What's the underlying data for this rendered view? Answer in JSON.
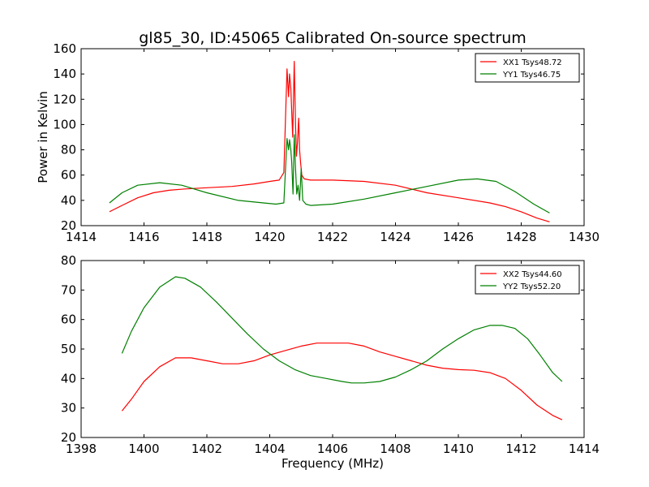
{
  "figure": {
    "title": "gl85_30, ID:45065 Calibrated On-source spectrum"
  },
  "chart_data": [
    {
      "type": "line",
      "title": "gl85_30, ID:45065 Calibrated On-source spectrum",
      "xlabel": "",
      "ylabel": "Power in Kelvin",
      "xlim": [
        1414,
        1430
      ],
      "ylim": [
        20,
        160
      ],
      "xticks": [
        1414,
        1416,
        1418,
        1420,
        1422,
        1424,
        1426,
        1428,
        1430
      ],
      "yticks": [
        20,
        40,
        60,
        80,
        100,
        120,
        140,
        160
      ],
      "grid": false,
      "legend_position": "top-right",
      "series": [
        {
          "name": "XX1 Tsys48.72",
          "color": "#ff0000",
          "x": [
            1414.9,
            1415.3,
            1415.8,
            1416.3,
            1416.8,
            1417.3,
            1418.0,
            1418.8,
            1419.5,
            1420.0,
            1420.3,
            1420.45,
            1420.55,
            1420.6,
            1420.63,
            1420.67,
            1420.7,
            1420.73,
            1420.78,
            1420.82,
            1420.85,
            1420.88,
            1420.92,
            1420.95,
            1420.98,
            1421.02,
            1421.1,
            1421.3,
            1422.0,
            1423.0,
            1424.0,
            1425.0,
            1426.0,
            1427.0,
            1427.5,
            1428.0,
            1428.5,
            1428.9
          ],
          "y": [
            31,
            36,
            42,
            46,
            48,
            49,
            50,
            51,
            53,
            55,
            56,
            62,
            144,
            122,
            140,
            129,
            110,
            90,
            150,
            100,
            75,
            85,
            105,
            80,
            70,
            60,
            57,
            56,
            56,
            55,
            52,
            46,
            42,
            38,
            35,
            31,
            26,
            23
          ]
        },
        {
          "name": "YY1 Tsys46.75",
          "color": "#008000",
          "x": [
            1414.9,
            1415.3,
            1415.8,
            1416.5,
            1417.2,
            1418.0,
            1419.0,
            1419.8,
            1420.2,
            1420.45,
            1420.55,
            1420.6,
            1420.63,
            1420.67,
            1420.7,
            1420.74,
            1420.78,
            1420.82,
            1420.86,
            1420.9,
            1420.95,
            1421.0,
            1421.05,
            1421.15,
            1421.3,
            1422.0,
            1423.0,
            1424.0,
            1425.0,
            1426.0,
            1426.6,
            1427.2,
            1427.8,
            1428.4,
            1428.9
          ],
          "y": [
            38,
            46,
            52,
            54,
            52,
            46,
            40,
            38,
            37,
            38,
            89,
            80,
            88,
            80,
            70,
            45,
            92,
            65,
            45,
            52,
            40,
            65,
            40,
            37,
            36,
            37,
            41,
            46,
            51,
            56,
            57,
            55,
            47,
            37,
            30
          ]
        }
      ]
    },
    {
      "type": "line",
      "title": "",
      "xlabel": "Frequency (MHz)",
      "ylabel": "",
      "xlim": [
        1398,
        1414
      ],
      "ylim": [
        20,
        80
      ],
      "xticks": [
        1398,
        1400,
        1402,
        1404,
        1406,
        1408,
        1410,
        1412,
        1414
      ],
      "yticks": [
        20,
        30,
        40,
        50,
        60,
        70,
        80
      ],
      "grid": false,
      "legend_position": "top-right",
      "series": [
        {
          "name": "XX2 Tsys44.60",
          "color": "#ff0000",
          "x": [
            1399.3,
            1399.6,
            1400.0,
            1400.5,
            1401.0,
            1401.5,
            1402.0,
            1402.5,
            1403.0,
            1403.5,
            1404.0,
            1404.5,
            1405.0,
            1405.5,
            1406.0,
            1406.5,
            1407.0,
            1407.5,
            1408.0,
            1408.5,
            1409.0,
            1409.5,
            1410.0,
            1410.5,
            1411.0,
            1411.5,
            1412.0,
            1412.5,
            1413.0,
            1413.3
          ],
          "y": [
            29,
            33,
            39,
            44,
            47,
            47,
            46,
            45,
            45,
            46,
            48,
            49.5,
            51,
            52,
            52,
            52,
            51,
            49,
            47.5,
            46,
            44.5,
            43.5,
            43,
            42.8,
            42,
            40,
            36,
            31,
            27.5,
            26
          ]
        },
        {
          "name": "YY2 Tsys52.20",
          "color": "#008000",
          "x": [
            1399.3,
            1399.6,
            1400.0,
            1400.5,
            1401.0,
            1401.3,
            1401.8,
            1402.3,
            1402.8,
            1403.3,
            1403.8,
            1404.3,
            1404.8,
            1405.3,
            1405.8,
            1406.3,
            1406.6,
            1407.0,
            1407.5,
            1408.0,
            1408.5,
            1409.0,
            1409.5,
            1410.0,
            1410.5,
            1411.0,
            1411.4,
            1411.8,
            1412.2,
            1412.6,
            1413.0,
            1413.3
          ],
          "y": [
            48.5,
            56,
            64,
            71,
            74.5,
            74,
            71,
            66,
            60.5,
            55,
            50,
            46,
            43,
            41,
            40,
            39,
            38.5,
            38.5,
            39,
            40.5,
            43,
            46,
            50,
            53.5,
            56.5,
            58,
            58,
            57,
            53.5,
            48,
            42,
            39
          ]
        }
      ]
    }
  ]
}
